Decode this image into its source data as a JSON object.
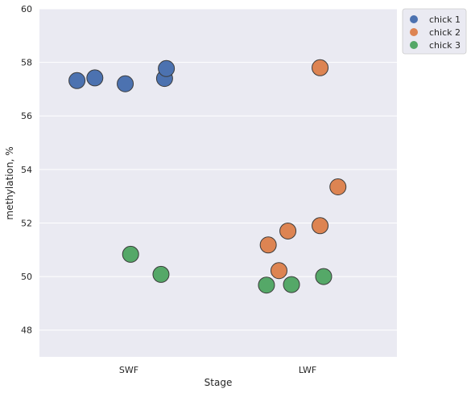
{
  "chart_data": {
    "type": "scatter",
    "xlabel": "Stage",
    "ylabel": "methylation, %",
    "categories": [
      "SWF",
      "LWF"
    ],
    "ylim": [
      47,
      60
    ],
    "yticks": [
      48,
      50,
      52,
      54,
      56,
      58,
      60
    ],
    "grid": true,
    "legend_position": "top-right (outside plot)",
    "series": [
      {
        "name": "chick 1",
        "color": "#4C72B0",
        "points": [
          {
            "category": "SWF",
            "offset": -0.29,
            "y": 57.32
          },
          {
            "category": "SWF",
            "offset": -0.19,
            "y": 57.42
          },
          {
            "category": "SWF",
            "offset": -0.02,
            "y": 57.2
          },
          {
            "category": "SWF",
            "offset": 0.2,
            "y": 57.4
          },
          {
            "category": "SWF",
            "offset": 0.21,
            "y": 57.77
          }
        ]
      },
      {
        "name": "chick 2",
        "color": "#DD8452",
        "points": [
          {
            "category": "LWF",
            "offset": 0.07,
            "y": 57.8
          },
          {
            "category": "LWF",
            "offset": 0.17,
            "y": 53.35
          },
          {
            "category": "LWF",
            "offset": 0.07,
            "y": 51.9
          },
          {
            "category": "LWF",
            "offset": -0.11,
            "y": 51.7
          },
          {
            "category": "LWF",
            "offset": -0.22,
            "y": 51.18
          },
          {
            "category": "LWF",
            "offset": -0.16,
            "y": 50.22
          }
        ]
      },
      {
        "name": "chick 3",
        "color": "#55A868",
        "points": [
          {
            "category": "SWF",
            "offset": 0.01,
            "y": 50.83
          },
          {
            "category": "SWF",
            "offset": 0.18,
            "y": 50.08
          },
          {
            "category": "LWF",
            "offset": -0.23,
            "y": 49.68
          },
          {
            "category": "LWF",
            "offset": -0.09,
            "y": 49.7
          },
          {
            "category": "LWF",
            "offset": 0.09,
            "y": 50.0
          }
        ]
      }
    ]
  }
}
